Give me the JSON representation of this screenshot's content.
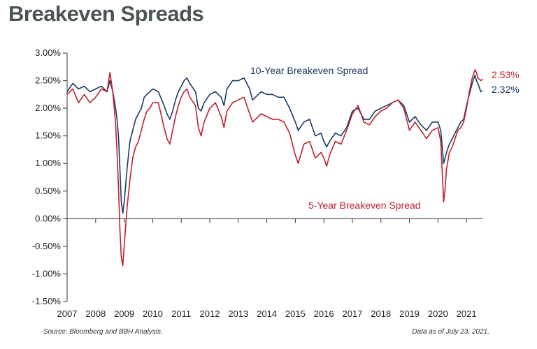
{
  "title": "Breakeven Spreads",
  "footer": {
    "source": "Source: Bloomberg and BBH Analysis.",
    "date": "Data as of July 23, 2021."
  },
  "colors": {
    "ten_year": "#1b3a63",
    "five_year": "#c0202e",
    "axis": "#333333"
  },
  "chart_data": {
    "type": "line",
    "title": "Breakeven Spreads",
    "xlabel": "",
    "ylabel": "",
    "xlim": [
      2007.0,
      2021.56
    ],
    "ylim": [
      -1.5,
      3.0
    ],
    "x_ticks": [
      "2007",
      "2008",
      "2009",
      "2010",
      "2011",
      "2012",
      "2013",
      "2014",
      "2015",
      "2016",
      "2017",
      "2018",
      "2019",
      "2020",
      "2021"
    ],
    "y_ticks": [
      "3.00%",
      "2.50%",
      "2.00%",
      "1.50%",
      "1.00%",
      "0.50%",
      "0.00%",
      "-0.50%",
      "-1.00%",
      "-1.50%"
    ],
    "series": [
      {
        "name": "10-Year Breakeven Spread",
        "end_label": "2.32%",
        "x": [
          2007.0,
          2007.2,
          2007.4,
          2007.6,
          2007.8,
          2008.0,
          2008.2,
          2008.4,
          2008.5,
          2008.6,
          2008.7,
          2008.75,
          2008.8,
          2008.85,
          2008.9,
          2008.95,
          2009.0,
          2009.1,
          2009.2,
          2009.3,
          2009.4,
          2009.5,
          2009.6,
          2009.7,
          2009.8,
          2009.9,
          2010.0,
          2010.2,
          2010.4,
          2010.5,
          2010.6,
          2010.7,
          2010.8,
          2010.9,
          2011.0,
          2011.1,
          2011.2,
          2011.3,
          2011.5,
          2011.6,
          2011.7,
          2011.8,
          2012.0,
          2012.2,
          2012.4,
          2012.5,
          2012.6,
          2012.8,
          2013.0,
          2013.2,
          2013.4,
          2013.5,
          2013.6,
          2013.8,
          2014.0,
          2014.2,
          2014.4,
          2014.6,
          2014.8,
          2015.0,
          2015.1,
          2015.3,
          2015.5,
          2015.7,
          2015.9,
          2016.0,
          2016.1,
          2016.2,
          2016.4,
          2016.6,
          2016.8,
          2017.0,
          2017.2,
          2017.4,
          2017.6,
          2017.8,
          2018.0,
          2018.2,
          2018.4,
          2018.6,
          2018.8,
          2019.0,
          2019.2,
          2019.4,
          2019.6,
          2019.8,
          2020.0,
          2020.1,
          2020.2,
          2020.25,
          2020.3,
          2020.4,
          2020.5,
          2020.6,
          2020.7,
          2020.8,
          2020.9,
          2021.0,
          2021.1,
          2021.2,
          2021.3,
          2021.35,
          2021.4,
          2021.5,
          2021.56
        ],
        "y": [
          2.3,
          2.45,
          2.35,
          2.4,
          2.3,
          2.35,
          2.4,
          2.3,
          2.5,
          2.3,
          2.0,
          1.8,
          1.5,
          0.9,
          0.3,
          0.1,
          0.3,
          0.9,
          1.4,
          1.6,
          1.8,
          1.9,
          2.0,
          2.2,
          2.25,
          2.3,
          2.35,
          2.3,
          2.05,
          1.9,
          1.8,
          1.95,
          2.15,
          2.3,
          2.4,
          2.5,
          2.55,
          2.45,
          2.3,
          2.0,
          1.95,
          2.1,
          2.25,
          2.3,
          2.2,
          2.05,
          2.35,
          2.5,
          2.5,
          2.55,
          2.35,
          2.15,
          2.2,
          2.3,
          2.25,
          2.25,
          2.2,
          2.2,
          2.0,
          1.75,
          1.6,
          1.75,
          1.8,
          1.5,
          1.55,
          1.4,
          1.3,
          1.4,
          1.55,
          1.5,
          1.65,
          1.95,
          2.0,
          1.8,
          1.8,
          1.95,
          2.0,
          2.05,
          2.1,
          2.15,
          2.05,
          1.75,
          1.85,
          1.7,
          1.6,
          1.75,
          1.75,
          1.6,
          1.0,
          1.1,
          1.2,
          1.35,
          1.45,
          1.55,
          1.65,
          1.75,
          1.8,
          2.05,
          2.25,
          2.45,
          2.6,
          2.5,
          2.45,
          2.3,
          2.32
        ]
      },
      {
        "name": "5-Year Breakeven Spread",
        "end_label": "2.53%",
        "x": [
          2007.0,
          2007.2,
          2007.4,
          2007.6,
          2007.8,
          2008.0,
          2008.2,
          2008.4,
          2008.5,
          2008.6,
          2008.7,
          2008.75,
          2008.8,
          2008.85,
          2008.9,
          2008.95,
          2009.0,
          2009.1,
          2009.2,
          2009.3,
          2009.4,
          2009.5,
          2009.6,
          2009.7,
          2009.8,
          2009.9,
          2010.0,
          2010.2,
          2010.4,
          2010.5,
          2010.6,
          2010.7,
          2010.8,
          2010.9,
          2011.0,
          2011.1,
          2011.2,
          2011.3,
          2011.5,
          2011.6,
          2011.7,
          2011.8,
          2012.0,
          2012.2,
          2012.4,
          2012.5,
          2012.6,
          2012.8,
          2013.0,
          2013.2,
          2013.4,
          2013.5,
          2013.6,
          2013.8,
          2014.0,
          2014.2,
          2014.4,
          2014.6,
          2014.8,
          2015.0,
          2015.1,
          2015.3,
          2015.5,
          2015.7,
          2015.9,
          2016.0,
          2016.1,
          2016.2,
          2016.4,
          2016.6,
          2016.8,
          2017.0,
          2017.2,
          2017.4,
          2017.6,
          2017.8,
          2018.0,
          2018.2,
          2018.4,
          2018.6,
          2018.8,
          2019.0,
          2019.2,
          2019.4,
          2019.6,
          2019.8,
          2020.0,
          2020.1,
          2020.2,
          2020.25,
          2020.3,
          2020.4,
          2020.5,
          2020.6,
          2020.7,
          2020.8,
          2020.9,
          2021.0,
          2021.1,
          2021.2,
          2021.3,
          2021.35,
          2021.4,
          2021.5,
          2021.56
        ],
        "y": [
          2.25,
          2.35,
          2.1,
          2.25,
          2.1,
          2.2,
          2.35,
          2.3,
          2.65,
          2.3,
          1.7,
          1.2,
          0.6,
          -0.2,
          -0.7,
          -0.85,
          -0.5,
          0.2,
          0.7,
          1.1,
          1.3,
          1.4,
          1.6,
          1.8,
          1.95,
          2.0,
          2.1,
          2.1,
          1.65,
          1.45,
          1.35,
          1.6,
          1.85,
          2.05,
          2.2,
          2.3,
          2.35,
          2.2,
          2.05,
          1.65,
          1.5,
          1.75,
          2.0,
          2.1,
          1.85,
          1.65,
          1.95,
          2.1,
          2.15,
          2.2,
          1.9,
          1.75,
          1.8,
          1.9,
          1.85,
          1.8,
          1.8,
          1.75,
          1.55,
          1.15,
          1.0,
          1.35,
          1.4,
          1.1,
          1.2,
          1.1,
          0.95,
          1.15,
          1.4,
          1.35,
          1.6,
          1.9,
          2.05,
          1.75,
          1.7,
          1.85,
          1.95,
          2.0,
          2.1,
          2.15,
          2.0,
          1.6,
          1.75,
          1.6,
          1.45,
          1.6,
          1.65,
          1.4,
          0.3,
          0.55,
          0.9,
          1.2,
          1.3,
          1.45,
          1.6,
          1.65,
          1.75,
          2.0,
          2.3,
          2.55,
          2.7,
          2.65,
          2.55,
          2.5,
          2.53
        ]
      }
    ]
  }
}
